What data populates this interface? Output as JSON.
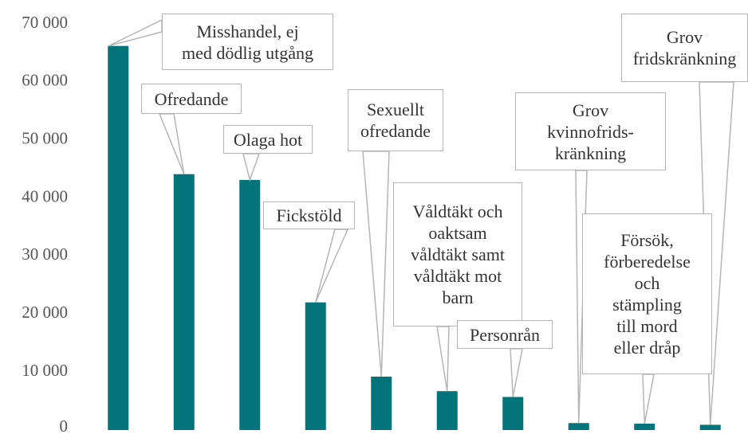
{
  "chart_data": {
    "type": "bar",
    "categories": [
      "Misshandel, ej\nmed dödlig utgång",
      "Ofredande",
      "Olaga hot",
      "Fickstöld",
      "Sexuellt\nofredande",
      "Våldtäkt och\noaktsam\nvåldtäkt samt\nvåldtäkt mot\nbarn",
      "Personrån",
      "Grov\nkvinnofrids-\nkränkning",
      "Försök,\nförberedelse\noch\nstämpling\ntill mord\neller dråp",
      "Grov\nfridskränkning"
    ],
    "values": [
      66200,
      44100,
      43100,
      22000,
      9200,
      6700,
      5700,
      1200,
      1100,
      900
    ],
    "color": "#03747a",
    "ylim": [
      0,
      70000
    ],
    "yticks": [
      0,
      {
        "value": 10000,
        "label": "10 000"
      },
      {
        "value": 20000,
        "label": "20 000"
      },
      {
        "value": 30000,
        "label": "30 000"
      },
      {
        "value": 40000,
        "label": "40 000"
      },
      {
        "value": 50000,
        "label": "50 000"
      },
      {
        "value": 60000,
        "label": "60 000"
      },
      {
        "value": 70000,
        "label": "70 000"
      }
    ],
    "grid": false
  }
}
